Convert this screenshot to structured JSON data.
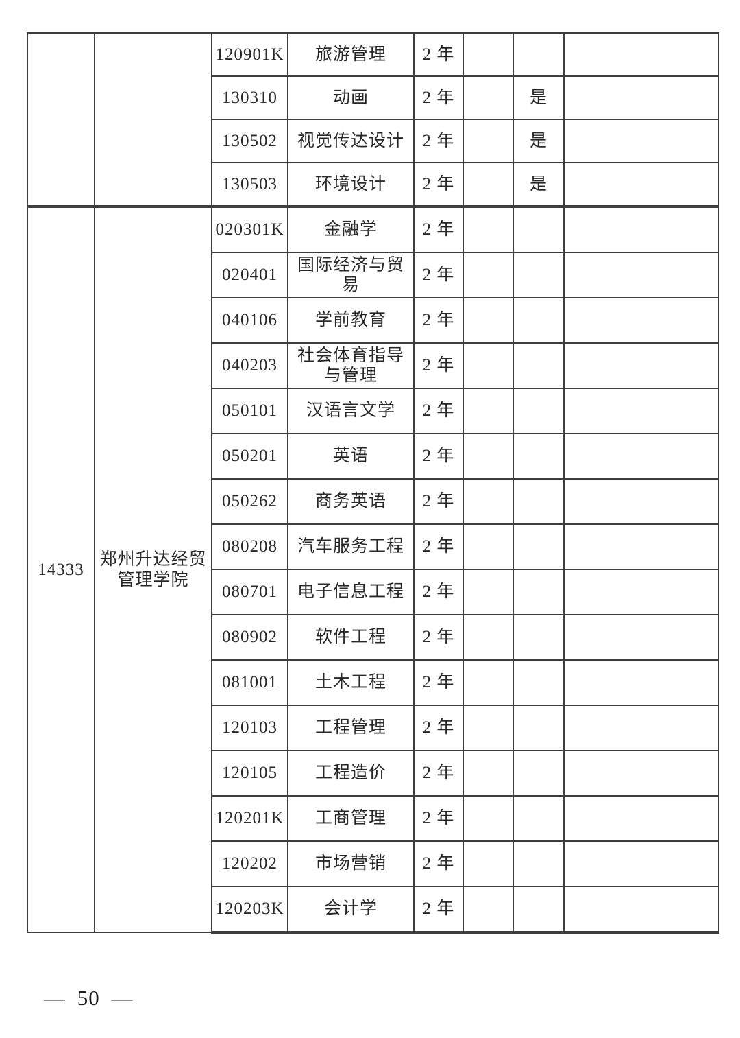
{
  "colors": {
    "background": "#ffffff",
    "text": "#282828",
    "table_line": "#3e3e3e"
  },
  "footer": {
    "page_number": "— 50 —"
  },
  "table": {
    "groups": [
      {
        "school_code": "",
        "school_name": "",
        "rows": [
          {
            "major_code": "120901K",
            "major_name": "旅游管理",
            "duration": "2 年",
            "col_blank": "",
            "yes_flag": "",
            "remark": ""
          },
          {
            "major_code": "130310",
            "major_name": "动画",
            "duration": "2 年",
            "col_blank": "",
            "yes_flag": "是",
            "remark": ""
          },
          {
            "major_code": "130502",
            "major_name": "视觉传达设计",
            "duration": "2 年",
            "col_blank": "",
            "yes_flag": "是",
            "remark": ""
          },
          {
            "major_code": "130503",
            "major_name": "环境设计",
            "duration": "2 年",
            "col_blank": "",
            "yes_flag": "是",
            "remark": ""
          }
        ]
      },
      {
        "school_code": "14333",
        "school_name": "郑州升达经贸管理学院",
        "rows": [
          {
            "major_code": "020301K",
            "major_name": "金融学",
            "duration": "2 年",
            "col_blank": "",
            "yes_flag": "",
            "remark": ""
          },
          {
            "major_code": "020401",
            "major_name": "国际经济与贸易",
            "duration": "2 年",
            "col_blank": "",
            "yes_flag": "",
            "remark": ""
          },
          {
            "major_code": "040106",
            "major_name": "学前教育",
            "duration": "2 年",
            "col_blank": "",
            "yes_flag": "",
            "remark": ""
          },
          {
            "major_code": "040203",
            "major_name": "社会体育指导与管理",
            "duration": "2 年",
            "col_blank": "",
            "yes_flag": "",
            "remark": ""
          },
          {
            "major_code": "050101",
            "major_name": "汉语言文学",
            "duration": "2 年",
            "col_blank": "",
            "yes_flag": "",
            "remark": ""
          },
          {
            "major_code": "050201",
            "major_name": "英语",
            "duration": "2 年",
            "col_blank": "",
            "yes_flag": "",
            "remark": ""
          },
          {
            "major_code": "050262",
            "major_name": "商务英语",
            "duration": "2 年",
            "col_blank": "",
            "yes_flag": "",
            "remark": ""
          },
          {
            "major_code": "080208",
            "major_name": "汽车服务工程",
            "duration": "2 年",
            "col_blank": "",
            "yes_flag": "",
            "remark": ""
          },
          {
            "major_code": "080701",
            "major_name": "电子信息工程",
            "duration": "2 年",
            "col_blank": "",
            "yes_flag": "",
            "remark": ""
          },
          {
            "major_code": "080902",
            "major_name": "软件工程",
            "duration": "2 年",
            "col_blank": "",
            "yes_flag": "",
            "remark": ""
          },
          {
            "major_code": "081001",
            "major_name": "土木工程",
            "duration": "2 年",
            "col_blank": "",
            "yes_flag": "",
            "remark": ""
          },
          {
            "major_code": "120103",
            "major_name": "工程管理",
            "duration": "2 年",
            "col_blank": "",
            "yes_flag": "",
            "remark": ""
          },
          {
            "major_code": "120105",
            "major_name": "工程造价",
            "duration": "2 年",
            "col_blank": "",
            "yes_flag": "",
            "remark": ""
          },
          {
            "major_code": "120201K",
            "major_name": "工商管理",
            "duration": "2 年",
            "col_blank": "",
            "yes_flag": "",
            "remark": ""
          },
          {
            "major_code": "120202",
            "major_name": "市场营销",
            "duration": "2 年",
            "col_blank": "",
            "yes_flag": "",
            "remark": ""
          },
          {
            "major_code": "120203K",
            "major_name": "会计学",
            "duration": "2 年",
            "col_blank": "",
            "yes_flag": "",
            "remark": ""
          }
        ]
      }
    ]
  }
}
